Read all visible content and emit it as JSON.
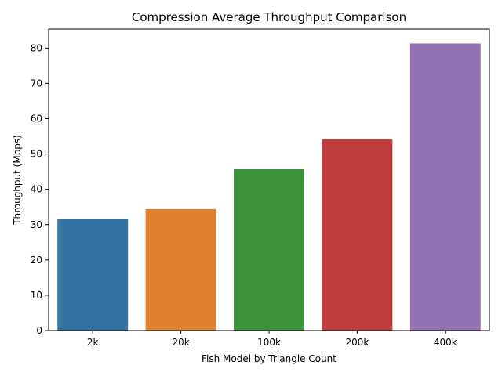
{
  "chart_data": {
    "type": "bar",
    "title": "Compression Average Throughput Comparison",
    "xlabel": "Fish Model by Triangle Count",
    "ylabel": "Throughput (Mbps)",
    "categories": [
      "2k",
      "20k",
      "100k",
      "200k",
      "400k"
    ],
    "values": [
      31.5,
      34.4,
      45.7,
      54.2,
      81.3
    ],
    "colors": [
      "#3274a1",
      "#e1812c",
      "#3a923a",
      "#c03d3e",
      "#9372b2"
    ],
    "ylim": [
      0,
      85.4
    ],
    "yticks": [
      0,
      10,
      20,
      30,
      40,
      50,
      60,
      70,
      80
    ],
    "grid": false,
    "legend": "none"
  }
}
